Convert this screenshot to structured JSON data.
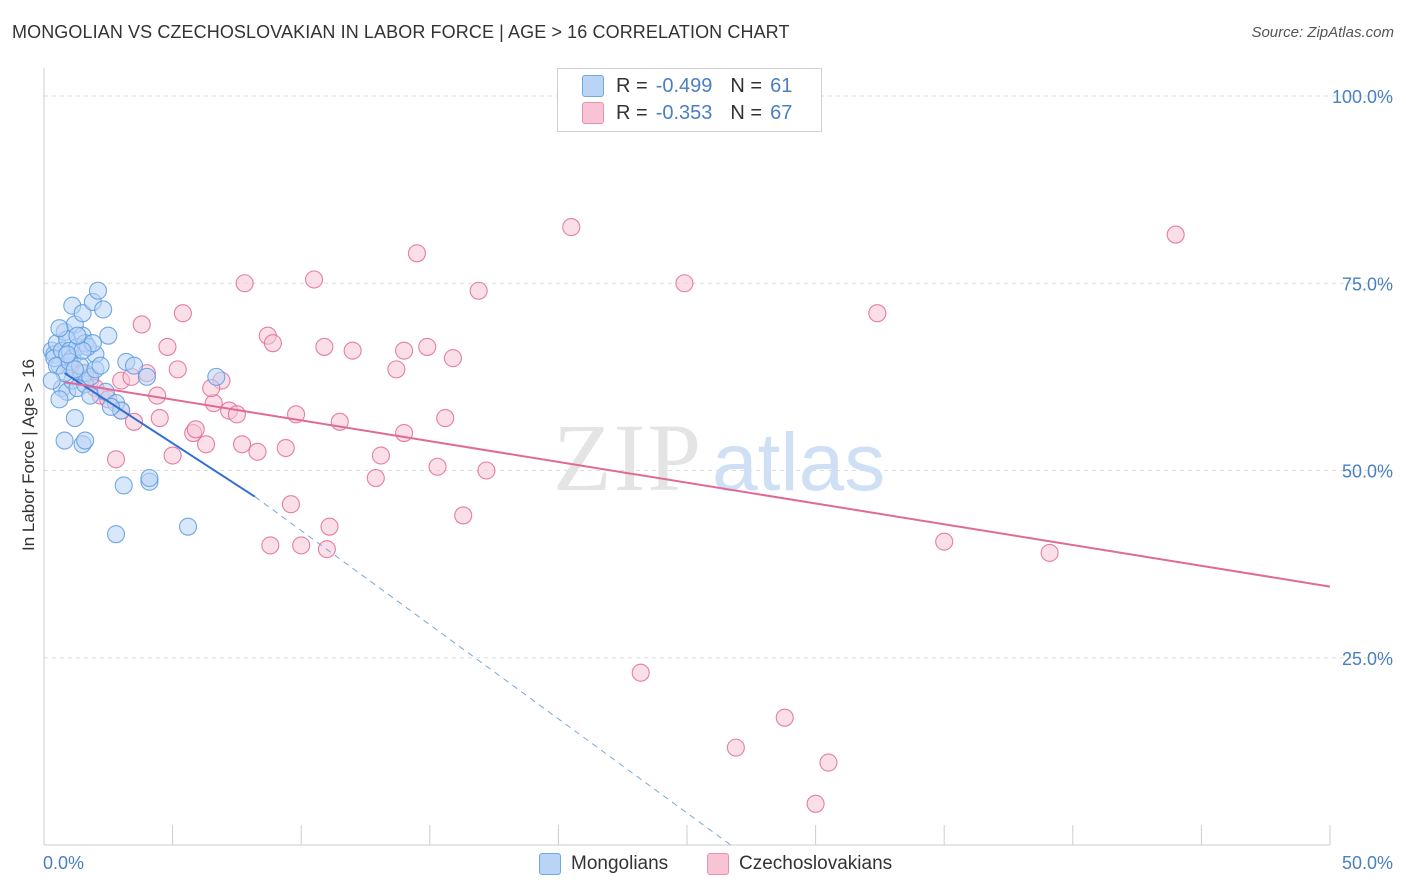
{
  "header": {
    "title": "MONGOLIAN VS CZECHOSLOVAKIAN IN LABOR FORCE | AGE > 16 CORRELATION CHART",
    "source": "Source: ZipAtlas.com"
  },
  "legend": {
    "rows": [
      {
        "r_label": "R =",
        "r_value": "-0.499",
        "n_label": "N =",
        "n_value": "61",
        "color": "#6fa8e8",
        "fill": "#b9d4f5"
      },
      {
        "r_label": "R =",
        "r_value": "-0.353",
        "n_label": "N =",
        "n_value": "67",
        "color": "#e890ae",
        "fill": "#f8c4d5"
      }
    ]
  },
  "bottom_legend": {
    "items": [
      {
        "label": "Mongolians",
        "color": "#6fa8e8",
        "fill": "#b9d4f5"
      },
      {
        "label": "Czechoslovakians",
        "color": "#e890ae",
        "fill": "#f8c4d5"
      }
    ]
  },
  "watermark": {
    "zip": "ZIP",
    "atlas": "atlas"
  },
  "chart_data": {
    "type": "scatter",
    "title": "MONGOLIAN VS CZECHOSLOVAKIAN IN LABOR FORCE | AGE > 16 CORRELATION CHART",
    "xlabel": "",
    "ylabel": "In Labor Force | Age > 16",
    "xlim": [
      0,
      50
    ],
    "ylim": [
      0,
      100
    ],
    "x_ticks": [
      "0.0%",
      "50.0%"
    ],
    "y_ticks": [
      "25.0%",
      "50.0%",
      "75.0%",
      "100.0%"
    ],
    "y_tick_values": [
      25,
      50,
      75,
      100
    ],
    "grid": "horizontal dashed",
    "legend_position": "top-center",
    "series": [
      {
        "name": "Mongolians",
        "color": "#5b9be0",
        "fill": "#b9d4f5",
        "trend": {
          "x0": 0.8,
          "y0": 63.0,
          "x1": 8.2,
          "y1": 46.5,
          "extend_x": 26.7,
          "extend_y": 0.0
        },
        "points": [
          [
            0.3,
            66.0
          ],
          [
            0.4,
            65.5
          ],
          [
            0.5,
            67.0
          ],
          [
            0.6,
            64.0
          ],
          [
            0.4,
            65.0
          ],
          [
            0.7,
            66.0
          ],
          [
            0.8,
            68.5
          ],
          [
            0.9,
            67.5
          ],
          [
            1.0,
            66.0
          ],
          [
            1.1,
            65.0
          ],
          [
            1.2,
            69.5
          ],
          [
            1.3,
            66.5
          ],
          [
            1.5,
            68.0
          ],
          [
            1.6,
            67.0
          ],
          [
            0.7,
            61.0
          ],
          [
            0.9,
            60.5
          ],
          [
            1.1,
            62.0
          ],
          [
            1.3,
            61.0
          ],
          [
            1.6,
            61.5
          ],
          [
            1.8,
            60.0
          ],
          [
            1.1,
            72.0
          ],
          [
            1.5,
            71.0
          ],
          [
            1.9,
            72.5
          ],
          [
            2.1,
            74.0
          ],
          [
            2.3,
            71.5
          ],
          [
            2.5,
            68.0
          ],
          [
            2.0,
            65.5
          ],
          [
            1.6,
            63.0
          ],
          [
            1.8,
            62.5
          ],
          [
            2.4,
            60.5
          ],
          [
            0.6,
            59.5
          ],
          [
            1.2,
            57.0
          ],
          [
            2.8,
            59.0
          ],
          [
            3.0,
            58.0
          ],
          [
            0.8,
            54.0
          ],
          [
            1.5,
            53.5
          ],
          [
            1.6,
            54.0
          ],
          [
            3.2,
            64.5
          ],
          [
            3.5,
            64.0
          ],
          [
            4.0,
            62.5
          ],
          [
            6.7,
            62.5
          ],
          [
            3.1,
            48.0
          ],
          [
            4.1,
            48.5
          ],
          [
            4.1,
            49.0
          ],
          [
            2.8,
            41.5
          ],
          [
            5.6,
            42.5
          ],
          [
            0.5,
            64.0
          ],
          [
            0.8,
            63.0
          ],
          [
            1.0,
            64.5
          ],
          [
            1.4,
            64.0
          ],
          [
            1.7,
            66.5
          ],
          [
            2.0,
            63.5
          ],
          [
            0.3,
            62.0
          ],
          [
            0.6,
            69.0
          ],
          [
            1.2,
            63.5
          ],
          [
            1.9,
            67.0
          ],
          [
            2.6,
            58.5
          ],
          [
            1.5,
            66.0
          ],
          [
            0.9,
            65.5
          ],
          [
            1.3,
            68.0
          ],
          [
            2.2,
            64.0
          ]
        ]
      },
      {
        "name": "Czechoslovakians",
        "color": "#e06a96",
        "fill": "#f8c4d5",
        "trend": {
          "x0": 0.8,
          "y0": 61.8,
          "x1": 50.0,
          "y1": 34.5
        },
        "points": [
          [
            1.0,
            64.0
          ],
          [
            1.5,
            63.0
          ],
          [
            1.8,
            62.0
          ],
          [
            2.0,
            61.0
          ],
          [
            2.2,
            60.0
          ],
          [
            2.5,
            59.5
          ],
          [
            3.0,
            62.0
          ],
          [
            3.4,
            62.5
          ],
          [
            3.8,
            69.5
          ],
          [
            4.0,
            63.0
          ],
          [
            4.4,
            60.0
          ],
          [
            4.8,
            66.5
          ],
          [
            5.2,
            63.5
          ],
          [
            5.4,
            71.0
          ],
          [
            5.8,
            55.0
          ],
          [
            6.3,
            53.5
          ],
          [
            6.6,
            59.0
          ],
          [
            6.9,
            62.0
          ],
          [
            7.2,
            58.0
          ],
          [
            7.7,
            53.5
          ],
          [
            7.8,
            75.0
          ],
          [
            8.3,
            52.5
          ],
          [
            8.7,
            68.0
          ],
          [
            8.9,
            67.0
          ],
          [
            9.4,
            53.0
          ],
          [
            9.6,
            45.5
          ],
          [
            10.0,
            40.0
          ],
          [
            10.5,
            75.5
          ],
          [
            10.9,
            66.5
          ],
          [
            11.1,
            42.5
          ],
          [
            11.5,
            56.5
          ],
          [
            12.0,
            66.0
          ],
          [
            12.9,
            49.0
          ],
          [
            13.7,
            63.5
          ],
          [
            14.0,
            55.0
          ],
          [
            14.0,
            66.0
          ],
          [
            14.5,
            79.0
          ],
          [
            14.9,
            66.5
          ],
          [
            15.3,
            50.5
          ],
          [
            15.9,
            65.0
          ],
          [
            16.3,
            44.0
          ],
          [
            16.9,
            74.0
          ],
          [
            17.2,
            50.0
          ],
          [
            20.5,
            82.5
          ],
          [
            23.2,
            23.0
          ],
          [
            24.9,
            75.0
          ],
          [
            26.9,
            13.0
          ],
          [
            28.8,
            17.0
          ],
          [
            30.5,
            11.0
          ],
          [
            32.4,
            71.0
          ],
          [
            35.0,
            40.5
          ],
          [
            44.0,
            81.5
          ],
          [
            39.1,
            39.0
          ],
          [
            30.0,
            5.5
          ],
          [
            4.5,
            57.0
          ],
          [
            5.9,
            55.5
          ],
          [
            2.8,
            51.5
          ],
          [
            3.5,
            56.5
          ],
          [
            6.5,
            61.0
          ],
          [
            7.5,
            57.5
          ],
          [
            8.8,
            40.0
          ],
          [
            9.8,
            57.5
          ],
          [
            11.0,
            39.5
          ],
          [
            13.1,
            52.0
          ],
          [
            15.6,
            57.0
          ],
          [
            3.0,
            58.0
          ],
          [
            5.0,
            52.0
          ]
        ]
      }
    ]
  }
}
